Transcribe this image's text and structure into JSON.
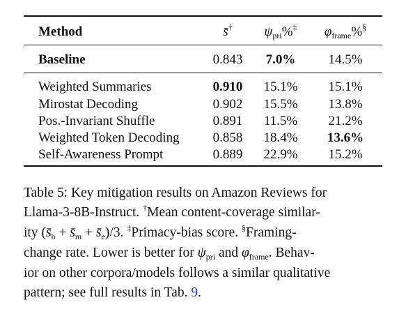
{
  "table": {
    "headers": {
      "method": "Method",
      "s_symbol": "s̄",
      "s_mark": "†",
      "pri_symbol": "ψ",
      "pri_sub": "pri",
      "pri_unit": "%",
      "pri_mark": "‡",
      "frame_symbol": "φ",
      "frame_sub": "frame",
      "frame_unit": "%",
      "frame_mark": "§"
    },
    "baseline": {
      "method": "Baseline",
      "s": "0.843",
      "pri": "7.0%",
      "frame": "14.5%"
    },
    "rows": [
      {
        "method": "Weighted Summaries",
        "s": "0.910",
        "pri": "15.1%",
        "frame": "15.1%"
      },
      {
        "method": "Mirostat Decoding",
        "s": "0.902",
        "pri": "15.5%",
        "frame": "13.8%"
      },
      {
        "method": "Pos.-Invariant Shuffle",
        "s": "0.891",
        "pri": "11.5%",
        "frame": "21.2%"
      },
      {
        "method": "Weighted Token Decoding",
        "s": "0.858",
        "pri": "18.4%",
        "frame": "13.6%"
      },
      {
        "method": "Self-Awareness Prompt",
        "s": "0.889",
        "pri": "22.9%",
        "frame": "15.2%"
      }
    ]
  },
  "caption": {
    "line1": "Table 5: Key mitigation results on Amazon Reviews for",
    "line2a": "Llama-3-8B-Instruct.",
    "dagger": "†",
    "line2b": "Mean content-coverage similar-",
    "line3a": "ity (",
    "sb": "s̄",
    "sb_sub": "b",
    "plus1": " + ",
    "sm": "s̄",
    "sm_sub": "m",
    "plus2": " + ",
    "se": "s̄",
    "se_sub": "e",
    "line3b": ")/3.",
    "ddagger": "‡",
    "line3c": "Primacy-bias score.",
    "section": "§",
    "line3d": "Framing-",
    "line4a": "change rate. Lower is better for",
    "psi": "ψ",
    "psi_sub": "pri",
    "and": " and ",
    "phi": "φ",
    "phi_sub": "frame",
    "line4b": ". Behav-",
    "line5": "ior on other corpora/models follows a similar qualitative",
    "line6a": "pattern; see full results in Tab. ",
    "tab_ref": "9",
    "line6b": "."
  }
}
